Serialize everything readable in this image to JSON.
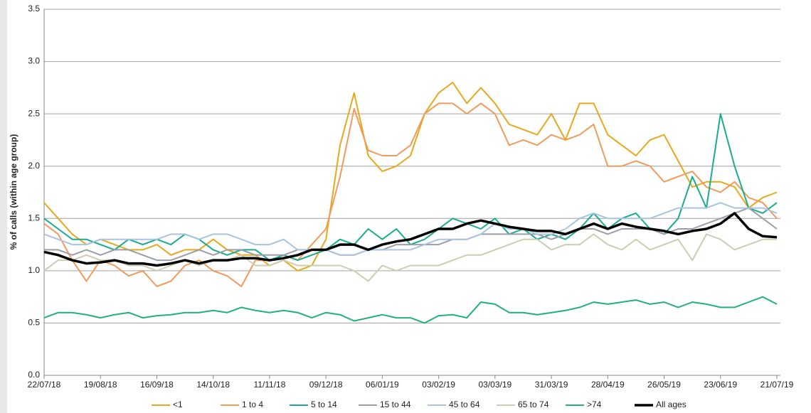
{
  "chart_data": {
    "type": "line",
    "y_label": "% of calls (within age group)",
    "x": [
      "22/07/18",
      "29/07/18",
      "05/08/18",
      "12/08/18",
      "19/08/18",
      "26/08/18",
      "02/09/18",
      "09/09/18",
      "16/09/18",
      "23/09/18",
      "30/09/18",
      "07/10/18",
      "14/10/18",
      "21/10/18",
      "28/10/18",
      "04/11/18",
      "11/11/18",
      "18/11/18",
      "25/11/18",
      "02/12/18",
      "09/12/18",
      "16/12/18",
      "23/12/18",
      "30/12/18",
      "06/01/19",
      "13/01/19",
      "20/01/19",
      "27/01/19",
      "03/02/19",
      "10/02/19",
      "17/02/19",
      "24/02/19",
      "03/03/19",
      "10/03/19",
      "17/03/19",
      "24/03/19",
      "31/03/19",
      "07/04/19",
      "14/04/19",
      "21/04/19",
      "28/04/19",
      "05/05/19",
      "12/05/19",
      "19/05/19",
      "26/05/19",
      "02/06/19",
      "09/06/19",
      "16/06/19",
      "23/06/19",
      "30/06/19",
      "07/07/19",
      "14/07/19",
      "21/07/19"
    ],
    "xlim": [
      "22/07/18",
      "21/07/19"
    ],
    "xticks": [
      "22/07/18",
      "19/08/18",
      "16/09/18",
      "14/10/18",
      "11/11/18",
      "09/12/18",
      "06/01/19",
      "03/02/19",
      "03/03/19",
      "31/03/19",
      "28/04/19",
      "26/05/19",
      "23/06/19",
      "21/07/19"
    ],
    "ylim": [
      0,
      3.5
    ],
    "yticks": [
      {
        "value": 0,
        "label": "0.0"
      },
      0.5,
      {
        "value": 1,
        "label": "1.0"
      },
      1.5,
      {
        "value": 2,
        "label": "2.0"
      },
      2.5,
      {
        "value": 3,
        "label": "3.0"
      },
      3.5
    ],
    "grid": true,
    "legend": "bottom",
    "series": [
      {
        "name": "<1",
        "color": "#e8a81c",
        "width": 2,
        "values": [
          1.65,
          1.5,
          1.35,
          1.25,
          1.3,
          1.25,
          1.2,
          1.2,
          1.25,
          1.15,
          1.2,
          1.2,
          1.3,
          1.2,
          1.15,
          1.15,
          1.05,
          1.1,
          1.0,
          1.05,
          1.3,
          2.2,
          2.7,
          2.1,
          1.95,
          2.0,
          2.1,
          2.5,
          2.7,
          2.8,
          2.6,
          2.75,
          2.6,
          2.4,
          2.35,
          2.3,
          2.5,
          2.25,
          2.6,
          2.6,
          2.3,
          2.2,
          2.1,
          2.25,
          2.3,
          2.05,
          1.8,
          1.85,
          1.85,
          1.8,
          1.6,
          1.7,
          1.75
        ]
      },
      {
        "name": "1 to 4",
        "color": "#f09a5c",
        "width": 2,
        "values": [
          1.45,
          1.35,
          1.1,
          0.9,
          1.1,
          1.05,
          0.95,
          1.0,
          0.85,
          0.9,
          1.05,
          1.1,
          1.0,
          0.95,
          0.85,
          1.1,
          1.1,
          1.15,
          1.1,
          1.25,
          1.4,
          1.9,
          2.55,
          2.15,
          2.1,
          2.1,
          2.2,
          2.5,
          2.6,
          2.6,
          2.5,
          2.6,
          2.5,
          2.2,
          2.25,
          2.2,
          2.3,
          2.25,
          2.3,
          2.4,
          2.0,
          2.0,
          2.05,
          2.0,
          1.85,
          1.9,
          1.95,
          1.8,
          1.75,
          1.85,
          1.7,
          1.65,
          1.5
        ]
      },
      {
        "name": "5 to 14",
        "color": "#1aab8f",
        "width": 2,
        "values": [
          1.5,
          1.4,
          1.3,
          1.3,
          1.25,
          1.2,
          1.3,
          1.25,
          1.3,
          1.25,
          1.35,
          1.3,
          1.2,
          1.15,
          1.2,
          1.2,
          1.1,
          1.15,
          1.1,
          1.15,
          1.2,
          1.3,
          1.25,
          1.4,
          1.3,
          1.4,
          1.25,
          1.3,
          1.4,
          1.5,
          1.45,
          1.4,
          1.5,
          1.35,
          1.4,
          1.3,
          1.35,
          1.3,
          1.4,
          1.55,
          1.4,
          1.5,
          1.55,
          1.4,
          1.35,
          1.5,
          1.9,
          1.6,
          2.5,
          2.0,
          1.6,
          1.55,
          1.65
        ]
      },
      {
        "name": "15 to 44",
        "color": "#9a9ea8",
        "width": 2,
        "values": [
          1.2,
          1.2,
          1.15,
          1.2,
          1.15,
          1.2,
          1.2,
          1.15,
          1.1,
          1.1,
          1.15,
          1.2,
          1.15,
          1.2,
          1.2,
          1.15,
          1.15,
          1.15,
          1.2,
          1.2,
          1.2,
          1.15,
          1.15,
          1.2,
          1.2,
          1.25,
          1.25,
          1.25,
          1.25,
          1.3,
          1.3,
          1.35,
          1.35,
          1.35,
          1.35,
          1.35,
          1.3,
          1.35,
          1.4,
          1.4,
          1.35,
          1.4,
          1.4,
          1.4,
          1.35,
          1.4,
          1.4,
          1.45,
          1.5,
          1.55,
          1.6,
          1.5,
          1.4
        ]
      },
      {
        "name": "45 to 64",
        "color": "#a8c4e0",
        "width": 2,
        "values": [
          1.35,
          1.3,
          1.25,
          1.25,
          1.3,
          1.3,
          1.3,
          1.3,
          1.3,
          1.35,
          1.35,
          1.3,
          1.35,
          1.35,
          1.3,
          1.25,
          1.25,
          1.3,
          1.2,
          1.2,
          1.2,
          1.15,
          1.15,
          1.2,
          1.2,
          1.2,
          1.2,
          1.25,
          1.3,
          1.3,
          1.3,
          1.35,
          1.45,
          1.4,
          1.4,
          1.35,
          1.35,
          1.4,
          1.5,
          1.55,
          1.5,
          1.5,
          1.5,
          1.5,
          1.55,
          1.6,
          1.6,
          1.6,
          1.65,
          1.6,
          1.6,
          1.6,
          1.55
        ]
      },
      {
        "name": "65 to 74",
        "color": "#cdcdb0",
        "width": 2,
        "values": [
          1.0,
          1.1,
          1.1,
          1.15,
          1.1,
          1.1,
          1.05,
          1.05,
          1.0,
          1.05,
          1.1,
          1.05,
          1.1,
          1.1,
          1.15,
          1.05,
          1.05,
          1.1,
          1.05,
          1.05,
          1.05,
          1.05,
          1.0,
          0.9,
          1.05,
          1.0,
          1.05,
          1.05,
          1.05,
          1.1,
          1.15,
          1.15,
          1.2,
          1.25,
          1.3,
          1.3,
          1.2,
          1.25,
          1.25,
          1.35,
          1.25,
          1.2,
          1.3,
          1.2,
          1.25,
          1.3,
          1.1,
          1.35,
          1.3,
          1.2,
          1.25,
          1.3,
          1.3
        ]
      },
      {
        "name": ">74",
        "color": "#22b07a",
        "width": 2,
        "values": [
          0.55,
          0.6,
          0.6,
          0.58,
          0.55,
          0.58,
          0.6,
          0.55,
          0.57,
          0.58,
          0.6,
          0.6,
          0.62,
          0.6,
          0.65,
          0.62,
          0.6,
          0.62,
          0.6,
          0.55,
          0.6,
          0.58,
          0.52,
          0.55,
          0.58,
          0.55,
          0.55,
          0.5,
          0.57,
          0.58,
          0.55,
          0.7,
          0.68,
          0.6,
          0.6,
          0.58,
          0.6,
          0.62,
          0.65,
          0.7,
          0.68,
          0.7,
          0.72,
          0.68,
          0.7,
          0.65,
          0.7,
          0.68,
          0.65,
          0.65,
          0.7,
          0.75,
          0.68
        ]
      },
      {
        "name": "All ages",
        "color": "#000000",
        "width": 3.5,
        "values": [
          1.18,
          1.15,
          1.1,
          1.07,
          1.08,
          1.1,
          1.07,
          1.07,
          1.05,
          1.07,
          1.1,
          1.07,
          1.1,
          1.1,
          1.12,
          1.12,
          1.1,
          1.12,
          1.15,
          1.2,
          1.2,
          1.25,
          1.25,
          1.2,
          1.25,
          1.28,
          1.3,
          1.35,
          1.4,
          1.4,
          1.45,
          1.48,
          1.45,
          1.42,
          1.4,
          1.38,
          1.38,
          1.35,
          1.4,
          1.45,
          1.4,
          1.45,
          1.42,
          1.4,
          1.38,
          1.35,
          1.38,
          1.4,
          1.45,
          1.55,
          1.4,
          1.33,
          1.32
        ]
      }
    ]
  }
}
